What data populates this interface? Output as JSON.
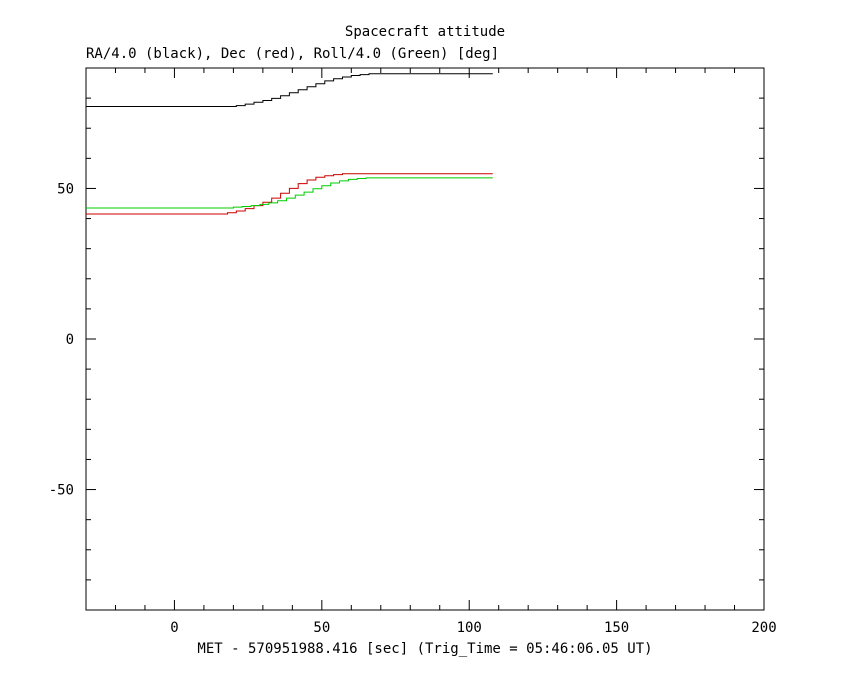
{
  "chart_data": {
    "type": "line",
    "title": "Spacecraft attitude",
    "subtitle": "RA/4.0 (black), Dec (red), Roll/4.0 (Green) [deg]",
    "xlabel": "MET - 570951988.416 [sec] (Trig_Time = 05:46:06.05 UT)",
    "ylabel": "",
    "xlim": [
      -30,
      200
    ],
    "ylim": [
      -90,
      90
    ],
    "x_ticks": [
      0,
      50,
      100,
      150,
      200
    ],
    "y_ticks": [
      -50,
      0,
      50
    ],
    "x_minor_step": 10,
    "y_minor_step": 10,
    "grid": false,
    "step_plot": true,
    "series": [
      {
        "color": "#000000",
        "x": [
          -30,
          18,
          21,
          24,
          27,
          30,
          33,
          36,
          39,
          42,
          45,
          48,
          51,
          54,
          57,
          60,
          63,
          66,
          108
        ],
        "values": [
          77.2,
          77.2,
          77.5,
          78.0,
          78.6,
          79.2,
          79.9,
          80.8,
          81.8,
          82.8,
          83.8,
          84.8,
          85.7,
          86.4,
          87.0,
          87.5,
          87.8,
          88.1,
          88.1
        ]
      },
      {
        "color": "#cc0000",
        "x": [
          -30,
          15,
          18,
          21,
          24,
          27,
          30,
          33,
          36,
          39,
          42,
          45,
          48,
          51,
          54,
          57,
          108
        ],
        "values": [
          41.5,
          41.5,
          41.9,
          42.5,
          43.3,
          44.3,
          45.4,
          46.8,
          48.4,
          50.0,
          51.6,
          52.8,
          53.7,
          54.2,
          54.6,
          54.9,
          54.9
        ]
      },
      {
        "color": "#00cc00",
        "x": [
          -30,
          17,
          20,
          23,
          26,
          29,
          32,
          35,
          38,
          41,
          44,
          47,
          50,
          53,
          56,
          59,
          62,
          65,
          108
        ],
        "values": [
          43.5,
          43.5,
          43.8,
          44.0,
          44.3,
          44.7,
          45.2,
          45.9,
          46.8,
          47.8,
          48.8,
          49.9,
          50.9,
          51.8,
          52.5,
          53.0,
          53.3,
          53.5,
          53.5
        ]
      }
    ]
  }
}
